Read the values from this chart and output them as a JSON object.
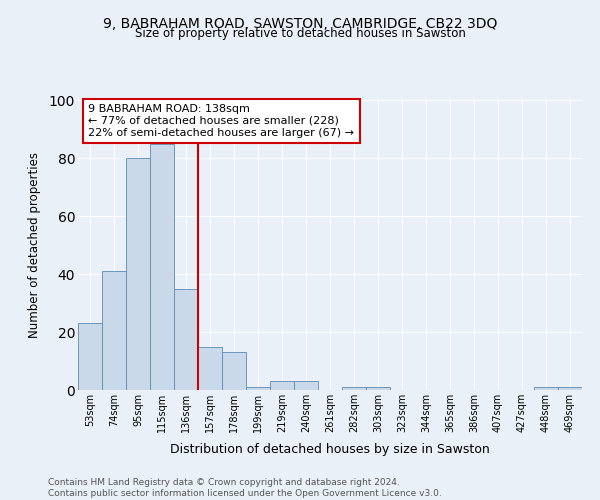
{
  "title1": "9, BABRAHAM ROAD, SAWSTON, CAMBRIDGE, CB22 3DQ",
  "title2": "Size of property relative to detached houses in Sawston",
  "xlabel": "Distribution of detached houses by size in Sawston",
  "ylabel": "Number of detached properties",
  "bin_labels": [
    "53sqm",
    "74sqm",
    "95sqm",
    "115sqm",
    "136sqm",
    "157sqm",
    "178sqm",
    "199sqm",
    "219sqm",
    "240sqm",
    "261sqm",
    "282sqm",
    "303sqm",
    "323sqm",
    "344sqm",
    "365sqm",
    "386sqm",
    "407sqm",
    "427sqm",
    "448sqm",
    "469sqm"
  ],
  "bar_heights": [
    23,
    41,
    80,
    85,
    35,
    15,
    13,
    1,
    3,
    3,
    0,
    1,
    1,
    0,
    0,
    0,
    0,
    0,
    0,
    1,
    1
  ],
  "bar_color": "#c9d9ea",
  "bar_edge_color": "#5a8ab5",
  "subject_line_color": "#cc0000",
  "annotation_text": "9 BABRAHAM ROAD: 138sqm\n← 77% of detached houses are smaller (228)\n22% of semi-detached houses are larger (67) →",
  "annotation_box_color": "#ffffff",
  "annotation_box_edge": "#cc0000",
  "ylim": [
    0,
    100
  ],
  "yticks": [
    0,
    20,
    40,
    60,
    80,
    100
  ],
  "footer_text": "Contains HM Land Registry data © Crown copyright and database right 2024.\nContains public sector information licensed under the Open Government Licence v3.0.",
  "bg_color": "#eaf0f8",
  "plot_bg_color": "#eaf0f8",
  "grid_color": "#ffffff"
}
